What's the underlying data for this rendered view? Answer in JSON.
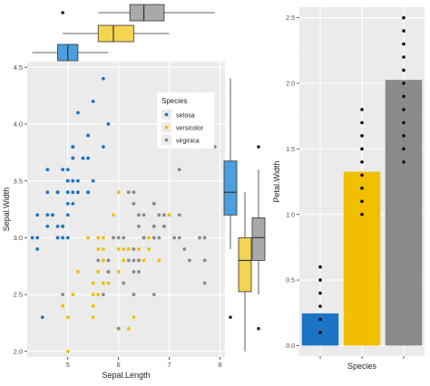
{
  "colors": {
    "setosa": "#1c74c4",
    "versicolor": "#f2bf00",
    "virginica": "#8a8a8a",
    "box_setosa": "#4a9fdc",
    "box_versicolor": "#f5d451",
    "box_virginica": "#a9a9a9",
    "panel_bg": "#ebebeb",
    "grid_major": "#ffffff",
    "grid_minor": "#f3f3f3",
    "tick_text": "#4d4d4d",
    "axis_title": "#222222",
    "outline": "#333333"
  },
  "chart_data": [
    {
      "type": "scatter",
      "xlabel": "Sepal.Length",
      "ylabel": "Sepal.Width",
      "xlim": [
        4.2,
        8.1
      ],
      "ylim": [
        1.95,
        4.55
      ],
      "x_ticks": [
        5,
        6,
        7,
        8
      ],
      "y_ticks": [
        2.0,
        2.5,
        3.0,
        3.5,
        4.0,
        4.5
      ],
      "y_tick_labels": [
        "2.0",
        "2.5",
        "3.0",
        "3.5",
        "4.0",
        "4.5"
      ],
      "grid": true,
      "legend": {
        "title": "Species",
        "position": "top-right",
        "entries": [
          "setosa",
          "versicolor",
          "virginica"
        ]
      },
      "series": [
        {
          "name": "setosa",
          "points": [
            [
              5.1,
              3.5
            ],
            [
              4.9,
              3.0
            ],
            [
              4.7,
              3.2
            ],
            [
              4.6,
              3.1
            ],
            [
              5.0,
              3.6
            ],
            [
              5.4,
              3.9
            ],
            [
              4.6,
              3.4
            ],
            [
              5.0,
              3.4
            ],
            [
              4.4,
              2.9
            ],
            [
              4.9,
              3.1
            ],
            [
              5.4,
              3.7
            ],
            [
              4.8,
              3.4
            ],
            [
              4.8,
              3.0
            ],
            [
              4.3,
              3.0
            ],
            [
              5.8,
              4.0
            ],
            [
              5.7,
              4.4
            ],
            [
              5.4,
              3.9
            ],
            [
              5.1,
              3.5
            ],
            [
              5.7,
              3.8
            ],
            [
              5.1,
              3.8
            ],
            [
              5.4,
              3.4
            ],
            [
              5.1,
              3.7
            ],
            [
              4.6,
              3.6
            ],
            [
              5.1,
              3.3
            ],
            [
              4.8,
              3.4
            ],
            [
              5.0,
              3.0
            ],
            [
              5.0,
              3.4
            ],
            [
              5.2,
              3.5
            ],
            [
              5.2,
              3.4
            ],
            [
              4.7,
              3.2
            ],
            [
              4.8,
              3.1
            ],
            [
              5.4,
              3.4
            ],
            [
              5.2,
              4.1
            ],
            [
              5.5,
              4.2
            ],
            [
              4.9,
              3.1
            ],
            [
              5.0,
              3.2
            ],
            [
              5.5,
              3.5
            ],
            [
              4.9,
              3.6
            ],
            [
              4.4,
              3.0
            ],
            [
              5.1,
              3.4
            ],
            [
              5.0,
              3.5
            ],
            [
              4.5,
              2.3
            ],
            [
              4.4,
              3.2
            ],
            [
              5.0,
              3.5
            ],
            [
              5.1,
              3.8
            ],
            [
              4.8,
              3.0
            ],
            [
              5.1,
              3.8
            ],
            [
              4.6,
              3.2
            ],
            [
              5.3,
              3.7
            ],
            [
              5.0,
              3.3
            ]
          ]
        },
        {
          "name": "versicolor",
          "points": [
            [
              7.0,
              3.2
            ],
            [
              6.4,
              3.2
            ],
            [
              6.9,
              3.1
            ],
            [
              5.5,
              2.3
            ],
            [
              6.5,
              2.8
            ],
            [
              5.7,
              2.8
            ],
            [
              6.3,
              3.3
            ],
            [
              4.9,
              2.4
            ],
            [
              6.6,
              2.9
            ],
            [
              5.2,
              2.7
            ],
            [
              5.0,
              2.0
            ],
            [
              5.9,
              3.0
            ],
            [
              6.0,
              2.2
            ],
            [
              6.1,
              2.9
            ],
            [
              5.6,
              2.9
            ],
            [
              6.7,
              3.1
            ],
            [
              5.6,
              3.0
            ],
            [
              5.8,
              2.7
            ],
            [
              6.2,
              2.2
            ],
            [
              5.6,
              2.5
            ],
            [
              5.9,
              3.2
            ],
            [
              6.1,
              2.8
            ],
            [
              6.3,
              2.5
            ],
            [
              6.1,
              2.8
            ],
            [
              6.4,
              2.9
            ],
            [
              6.6,
              3.0
            ],
            [
              6.8,
              2.8
            ],
            [
              6.7,
              3.0
            ],
            [
              6.0,
              2.9
            ],
            [
              5.7,
              2.6
            ],
            [
              5.5,
              2.4
            ],
            [
              5.5,
              2.4
            ],
            [
              5.8,
              2.7
            ],
            [
              6.0,
              2.7
            ],
            [
              5.4,
              3.0
            ],
            [
              6.0,
              3.4
            ],
            [
              6.7,
              3.1
            ],
            [
              6.3,
              2.3
            ],
            [
              5.6,
              3.0
            ],
            [
              5.5,
              2.5
            ],
            [
              5.5,
              2.6
            ],
            [
              6.1,
              3.0
            ],
            [
              5.8,
              2.6
            ],
            [
              5.0,
              2.3
            ],
            [
              5.6,
              2.7
            ],
            [
              5.7,
              3.0
            ],
            [
              5.7,
              2.9
            ],
            [
              6.2,
              2.9
            ],
            [
              5.1,
              2.5
            ],
            [
              5.7,
              2.8
            ]
          ]
        },
        {
          "name": "virginica",
          "points": [
            [
              6.3,
              3.3
            ],
            [
              5.8,
              2.7
            ],
            [
              7.1,
              3.0
            ],
            [
              6.3,
              2.9
            ],
            [
              6.5,
              3.0
            ],
            [
              7.6,
              3.0
            ],
            [
              4.9,
              2.5
            ],
            [
              7.3,
              2.9
            ],
            [
              6.7,
              2.5
            ],
            [
              7.2,
              3.6
            ],
            [
              6.5,
              3.2
            ],
            [
              6.4,
              2.7
            ],
            [
              6.8,
              3.0
            ],
            [
              5.7,
              2.5
            ],
            [
              5.8,
              2.8
            ],
            [
              6.4,
              3.2
            ],
            [
              6.5,
              3.0
            ],
            [
              7.7,
              3.8
            ],
            [
              7.7,
              2.6
            ],
            [
              6.0,
              2.2
            ],
            [
              6.9,
              3.2
            ],
            [
              5.6,
              2.8
            ],
            [
              7.7,
              2.8
            ],
            [
              6.3,
              2.7
            ],
            [
              6.7,
              3.3
            ],
            [
              7.2,
              3.2
            ],
            [
              6.2,
              2.8
            ],
            [
              6.1,
              3.0
            ],
            [
              6.4,
              2.8
            ],
            [
              7.2,
              3.0
            ],
            [
              7.4,
              2.8
            ],
            [
              7.9,
              3.8
            ],
            [
              6.4,
              2.8
            ],
            [
              6.3,
              2.8
            ],
            [
              6.1,
              2.6
            ],
            [
              7.7,
              3.0
            ],
            [
              6.3,
              3.4
            ],
            [
              6.4,
              3.1
            ],
            [
              6.0,
              3.0
            ],
            [
              6.9,
              3.1
            ],
            [
              6.7,
              3.1
            ],
            [
              6.9,
              3.1
            ],
            [
              5.8,
              2.7
            ],
            [
              6.8,
              3.2
            ],
            [
              6.7,
              3.3
            ],
            [
              6.7,
              3.0
            ],
            [
              6.3,
              2.5
            ],
            [
              6.5,
              3.0
            ],
            [
              6.2,
              3.4
            ],
            [
              5.9,
              3.0
            ]
          ]
        }
      ]
    },
    {
      "type": "box",
      "orientation": "horizontal",
      "variable": "Sepal.Length",
      "boxes": [
        {
          "name": "setosa",
          "whisker_low": 4.3,
          "q1": 4.8,
          "median": 5.0,
          "q3": 5.2,
          "whisker_high": 5.8,
          "outliers": []
        },
        {
          "name": "versicolor",
          "whisker_low": 4.9,
          "q1": 5.6,
          "median": 5.9,
          "q3": 6.3,
          "whisker_high": 7.0,
          "outliers": []
        },
        {
          "name": "virginica",
          "whisker_low": 5.6,
          "q1": 6.225,
          "median": 6.5,
          "q3": 6.9,
          "whisker_high": 7.9,
          "outliers": [
            4.9
          ]
        }
      ]
    },
    {
      "type": "box",
      "orientation": "vertical",
      "variable": "Sepal.Width",
      "boxes": [
        {
          "name": "setosa",
          "whisker_low": 2.9,
          "q1": 3.2,
          "median": 3.4,
          "q3": 3.675,
          "whisker_high": 4.4,
          "outliers": [
            2.3
          ]
        },
        {
          "name": "versicolor",
          "whisker_low": 2.0,
          "q1": 2.525,
          "median": 2.8,
          "q3": 3.0,
          "whisker_high": 3.4,
          "outliers": []
        },
        {
          "name": "virginica",
          "whisker_low": 2.5,
          "q1": 2.8,
          "median": 3.0,
          "q3": 3.175,
          "whisker_high": 3.6,
          "outliers": [
            2.2,
            3.8
          ]
        }
      ]
    },
    {
      "type": "bar",
      "xlabel": "Species",
      "ylabel": "Petal.Width",
      "ylim": [
        -0.08,
        2.58
      ],
      "y_ticks": [
        0.0,
        0.5,
        1.0,
        1.5,
        2.0,
        2.5
      ],
      "y_tick_labels": [
        "0.0",
        "0.5",
        "1.0",
        "1.5",
        "2.0",
        "2.5"
      ],
      "categories": [
        "setosa",
        "versicolor",
        "virginica"
      ],
      "values": [
        0.246,
        1.326,
        2.026
      ],
      "show_category_labels": false,
      "points": [
        [
          0.1,
          0.2,
          0.3,
          0.4,
          0.5,
          0.6
        ],
        [
          1.0,
          1.1,
          1.2,
          1.3,
          1.4,
          1.5,
          1.6,
          1.7,
          1.8
        ],
        [
          1.4,
          1.5,
          1.6,
          1.7,
          1.8,
          1.9,
          2.0,
          2.1,
          2.2,
          2.3,
          2.4,
          2.5
        ]
      ]
    }
  ]
}
